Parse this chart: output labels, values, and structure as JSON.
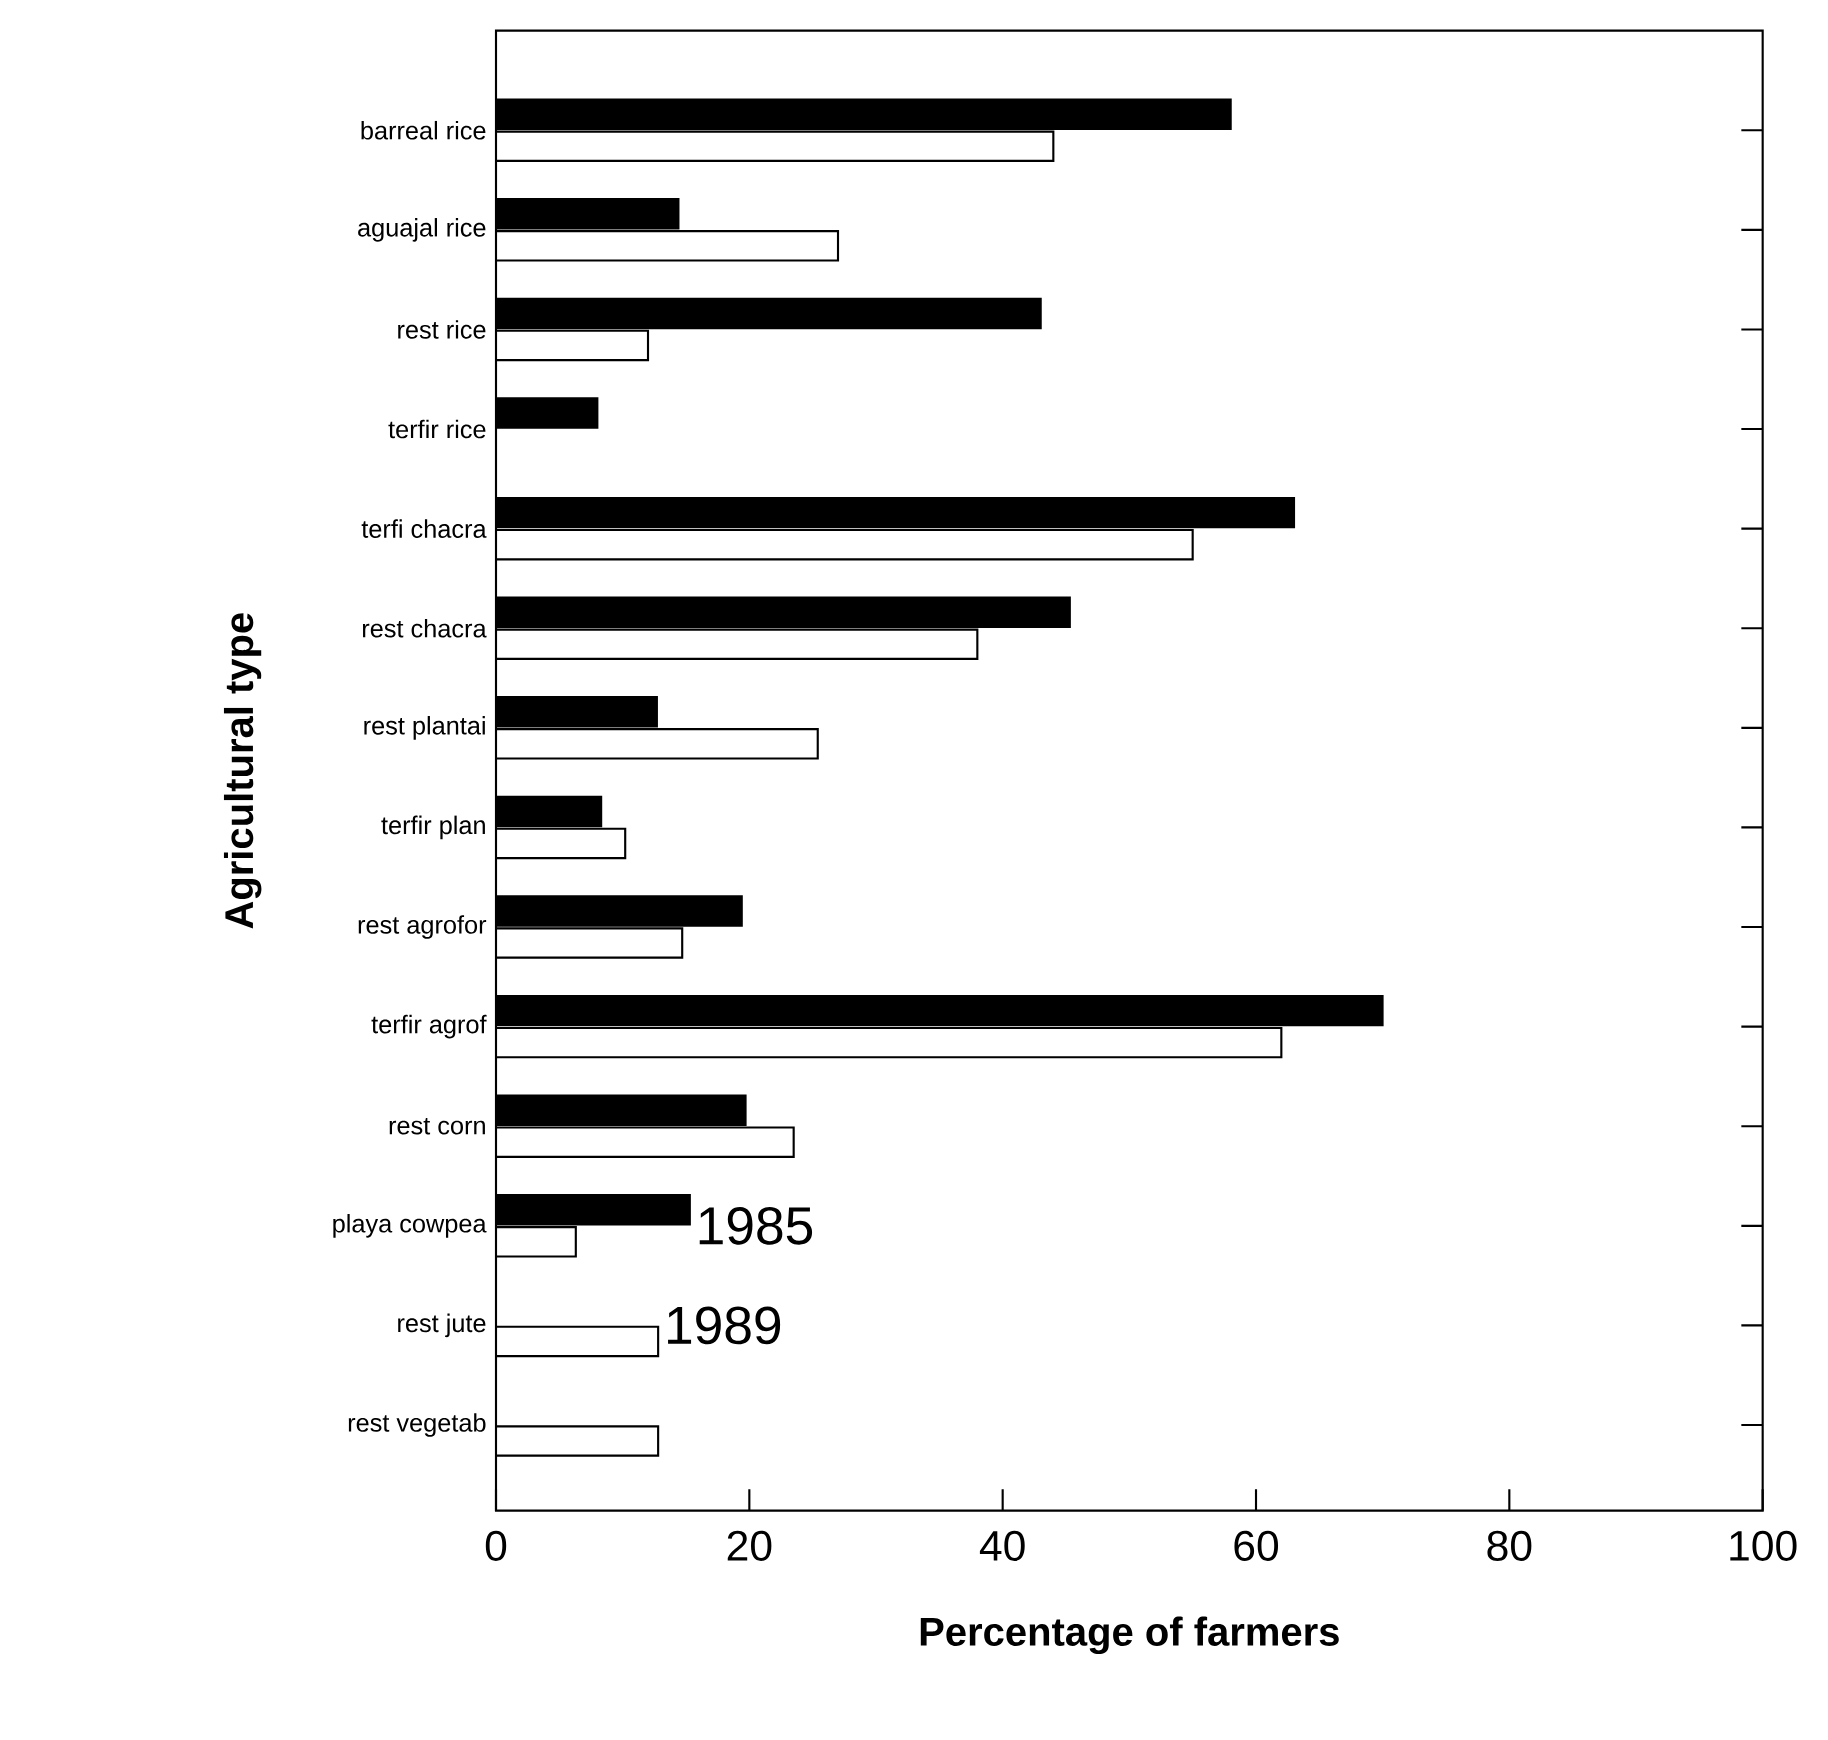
{
  "chart_data": {
    "type": "bar",
    "orientation": "horizontal",
    "xlabel": "Percentage of farmers",
    "ylabel": "Agricultural type",
    "categories": [
      "barreal rice",
      "aguajal rice",
      "rest rice",
      "terfir rice",
      "terfi chacra",
      "rest chacra",
      "rest plantai",
      "terfir plan",
      "rest agrofor",
      "terfir agrof",
      "rest corn",
      "playa cowpea",
      "rest jute",
      "rest vegetab"
    ],
    "series": [
      {
        "color": "#000000",
        "values": [
          58,
          14.4,
          43,
          8,
          63,
          45.3,
          12.7,
          8.3,
          19.4,
          70,
          19.7,
          15.3,
          null,
          null
        ]
      },
      {
        "color": "#ffffff",
        "values": [
          44,
          27,
          12,
          null,
          55,
          38,
          25.4,
          10.2,
          14.7,
          62,
          23.5,
          6.3,
          12.8,
          12.8
        ]
      }
    ],
    "annotations": [
      {
        "text": "1985",
        "x": 15.3,
        "y": "playa cowpea"
      },
      {
        "text": "1989",
        "x": 12.8,
        "y": "rest jute"
      }
    ],
    "xlim": [
      0,
      100
    ],
    "xticks": [
      0,
      20,
      40,
      60,
      80,
      100
    ]
  }
}
